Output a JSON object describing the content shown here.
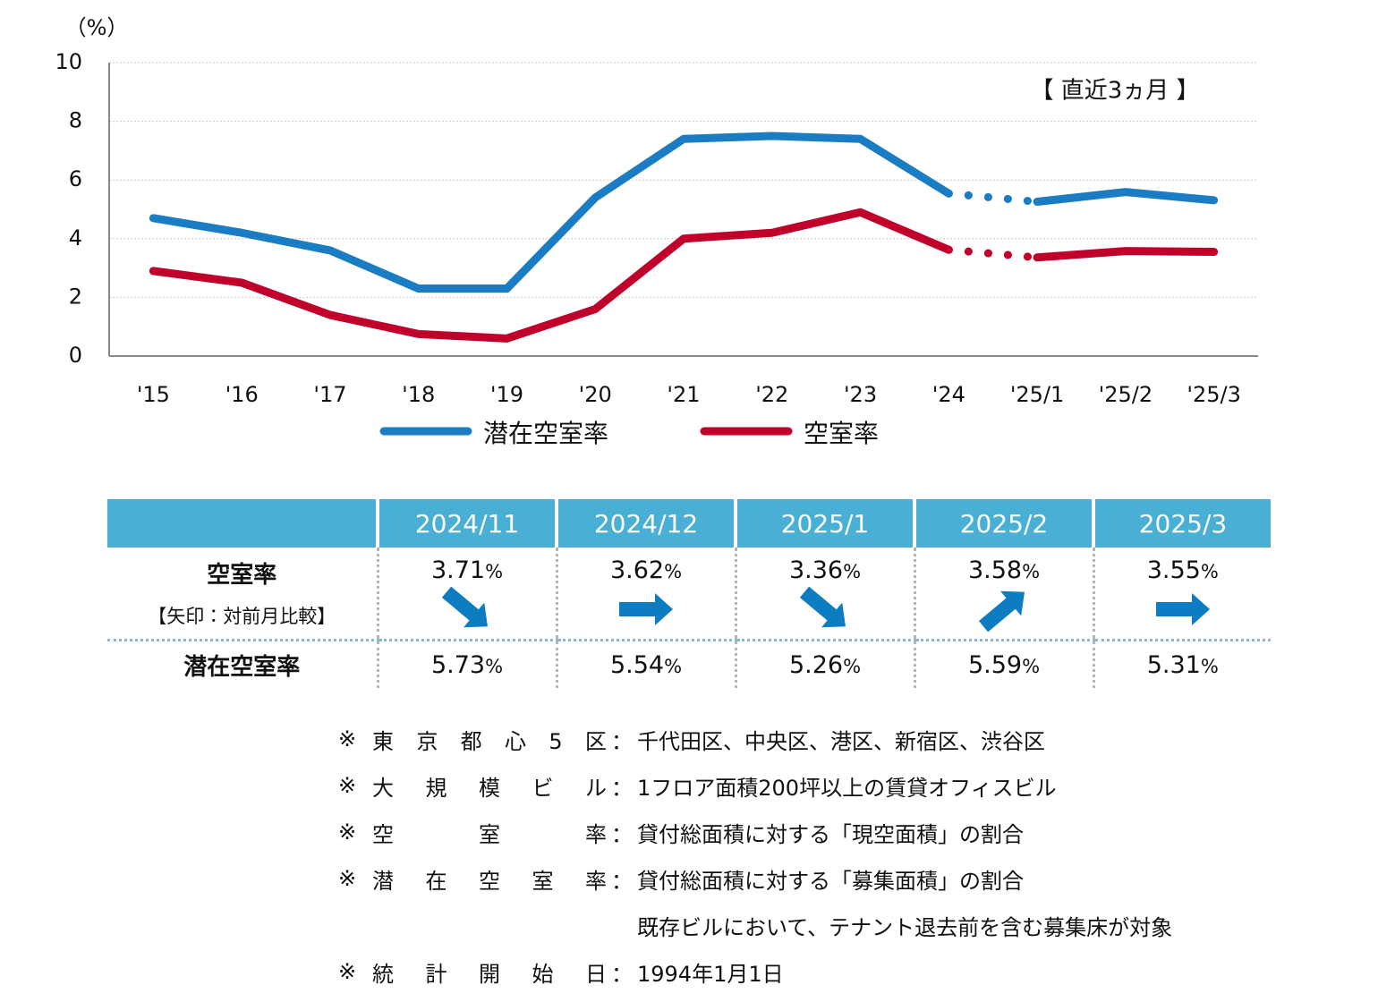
{
  "chart_data": {
    "type": "line",
    "y_label": "（%）",
    "annotation": "【 直近3ヵ月 】",
    "categories": [
      "'15",
      "'16",
      "'17",
      "'18",
      "'19",
      "'20",
      "'21",
      "'22",
      "'23",
      "'24",
      "'25/1",
      "'25/2",
      "'25/3"
    ],
    "series": [
      {
        "name": "潜在空室率",
        "color": "#1a7dc4",
        "values": [
          4.7,
          4.2,
          3.6,
          2.3,
          2.3,
          5.4,
          7.4,
          7.5,
          7.4,
          5.54,
          5.26,
          5.59,
          5.31
        ]
      },
      {
        "name": "空室率",
        "color": "#c0002a",
        "values": [
          2.9,
          2.5,
          1.4,
          0.75,
          0.6,
          1.6,
          4.0,
          4.2,
          4.9,
          3.62,
          3.36,
          3.58,
          3.55
        ]
      }
    ],
    "dotted_segments": [
      [
        9,
        10
      ]
    ],
    "ylim": [
      0,
      10
    ],
    "yticks": [
      0,
      2,
      4,
      6,
      8,
      10
    ],
    "grid": true
  },
  "table": {
    "columns": [
      "2024/11",
      "2024/12",
      "2025/1",
      "2025/2",
      "2025/3"
    ],
    "unit": "%",
    "rows": [
      {
        "label": "空室率",
        "sub_label": "【矢印：対前月比較】",
        "values": [
          3.71,
          3.62,
          3.36,
          3.58,
          3.55
        ],
        "arrows": [
          "down",
          "flat",
          "down",
          "up",
          "flat"
        ]
      },
      {
        "label": "潜在空室率",
        "values": [
          5.73,
          5.54,
          5.26,
          5.59,
          5.31
        ]
      }
    ]
  },
  "notes": {
    "mark": "※",
    "separator": "：",
    "items": [
      {
        "label": "東京都心5区",
        "text": [
          "千代田区、中央区、港区、新宿区、渋谷区"
        ]
      },
      {
        "label": "大規模ビル",
        "text": [
          "1フロア面積200坪以上の賃貸オフィスビル"
        ]
      },
      {
        "label": "空室率",
        "text": [
          "貸付総面積に対する「現空面積」の割合"
        ]
      },
      {
        "label": "潜在空室率",
        "text": [
          "貸付総面積に対する「募集面積」の割合",
          "既存ビルにおいて、テナント退去前を含む募集床が対象"
        ]
      },
      {
        "label": "統計開始日",
        "text": [
          "1994年1月1日"
        ]
      }
    ]
  }
}
